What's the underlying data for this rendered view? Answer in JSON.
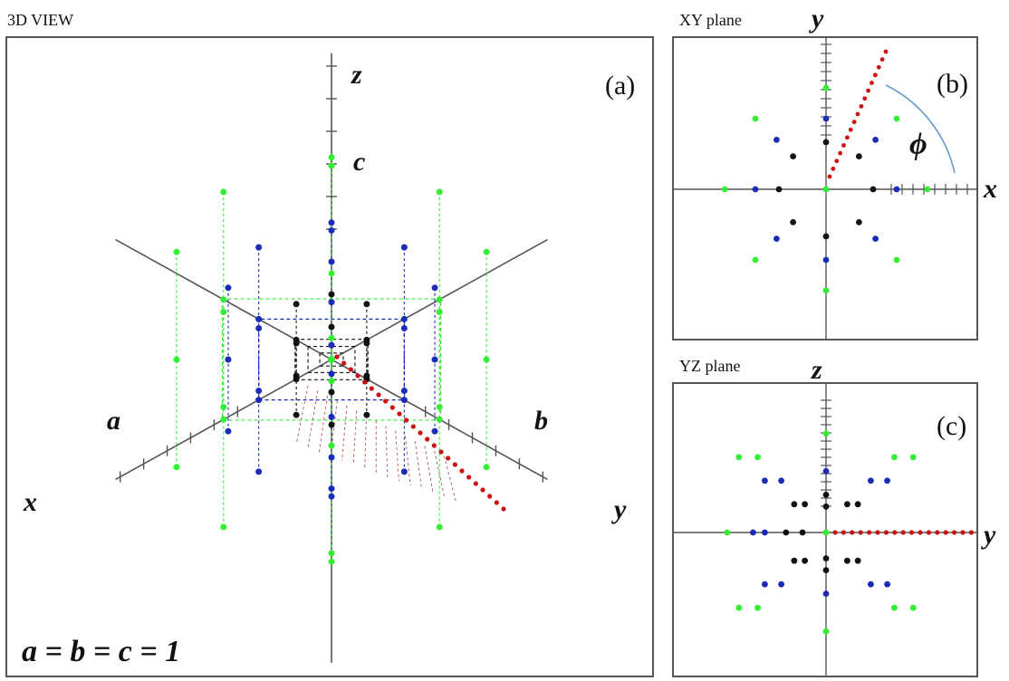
{
  "panels": {
    "view3d": {
      "title": "3D VIEW",
      "tag": "(a)"
    },
    "xy": {
      "title": "XY plane",
      "tag": "(b)"
    },
    "yz": {
      "title": "YZ plane",
      "tag": "(c)"
    }
  },
  "axis_labels": {
    "x": "x",
    "y": "y",
    "z": "z",
    "a": "a",
    "b": "b",
    "c": "c",
    "phi": "ϕ"
  },
  "equation": "a = b = c = 1",
  "colors": {
    "green": "#33ee33",
    "blue": "#1a2bb8",
    "black": "#111111",
    "red": "#cc1111",
    "axis": "#555555",
    "arc": "#6699cc"
  }
}
